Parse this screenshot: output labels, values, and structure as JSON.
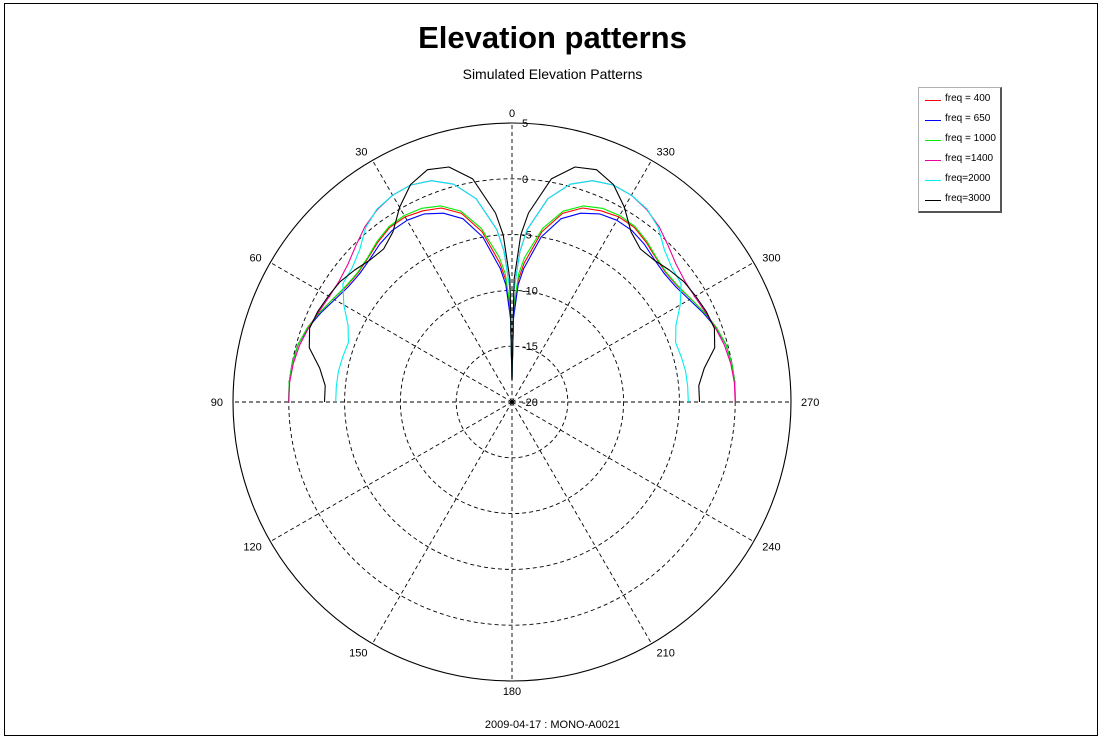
{
  "title": "Elevation patterns",
  "subtitle": "Simulated Elevation Patterns",
  "footer": "2009-04-17 : MONO-A0021",
  "chart_data": {
    "type": "polar-line",
    "title": "Elevation patterns",
    "subtitle": "Simulated Elevation Patterns",
    "angle_unit": "degrees",
    "angle_direction": "counterclockwise",
    "angle_zero": "top",
    "angle_ticks": [
      0,
      30,
      60,
      90,
      120,
      150,
      180,
      210,
      240,
      270,
      300,
      330
    ],
    "angle_tick_labels": [
      "0",
      "30",
      "60",
      "90",
      "120",
      "150",
      "180",
      "210",
      "240",
      "270",
      "300",
      "330"
    ],
    "radial_range": [
      -20,
      5
    ],
    "radial_ticks": [
      -20,
      -15,
      -10,
      -5,
      0,
      5
    ],
    "radial_tick_labels": [
      "-20",
      "-15",
      "-10",
      "-5",
      "0",
      "5"
    ],
    "grid": true,
    "legend_position": "top-right",
    "series": [
      {
        "name": "freq = 400",
        "color": "#ff0000",
        "angles": [
          0,
          1,
          3,
          5,
          10,
          15,
          20,
          25,
          30,
          35,
          40,
          45,
          50,
          55,
          60,
          65,
          70,
          75,
          80,
          85,
          90
        ],
        "values": [
          -18,
          -12,
          -9,
          -7.5,
          -4.5,
          -2.5,
          -1.5,
          -1.1,
          -0.85,
          -0.9,
          -1.3,
          -1.75,
          -2,
          -1.9,
          -1.5,
          -1,
          -0.5,
          -0.15,
          0,
          0.05,
          0
        ]
      },
      {
        "name": "freq = 650",
        "color": "#0000ff",
        "angles": [
          0,
          1,
          3,
          5,
          10,
          15,
          20,
          25,
          30,
          35,
          40,
          45,
          50,
          55,
          60,
          65,
          70,
          75,
          80,
          85,
          90
        ],
        "values": [
          -18,
          -12.5,
          -9.5,
          -8,
          -5,
          -3,
          -2,
          -1.4,
          -1.2,
          -1.25,
          -1.55,
          -1.95,
          -2.15,
          -2.05,
          -1.65,
          -1.1,
          -0.55,
          -0.15,
          0,
          0.05,
          0
        ]
      },
      {
        "name": "freq = 1000",
        "color": "#00ee00",
        "angles": [
          0,
          1,
          3,
          5,
          10,
          15,
          20,
          25,
          30,
          35,
          40,
          45,
          50,
          55,
          60,
          65,
          70,
          75,
          80,
          85,
          90
        ],
        "values": [
          -18,
          -11.5,
          -8.5,
          -7,
          -4.2,
          -2.3,
          -1.3,
          -0.85,
          -0.7,
          -0.8,
          -1.2,
          -1.7,
          -1.95,
          -1.85,
          -1.5,
          -1,
          -0.5,
          -0.15,
          0,
          0.05,
          0
        ]
      },
      {
        "name": "freq =1400",
        "color": "#ee0099",
        "angles": [
          0,
          1,
          3,
          5,
          10,
          15,
          20,
          25,
          30,
          35,
          40,
          45,
          50,
          55,
          60,
          65,
          70,
          75,
          80,
          85,
          90
        ],
        "values": [
          -18,
          -10,
          -6.5,
          -4.5,
          -1.5,
          0.2,
          1.1,
          1.45,
          1.4,
          1.05,
          0.5,
          -0.2,
          -0.8,
          -1.1,
          -1.1,
          -0.9,
          -0.6,
          -0.3,
          -0.1,
          0,
          0
        ]
      },
      {
        "name": "freq=2000",
        "color": "#00eeee",
        "angles": [
          0,
          1,
          3,
          5,
          10,
          15,
          20,
          25,
          30,
          35,
          40,
          45,
          50,
          55,
          60,
          65,
          70,
          75,
          80,
          85,
          90
        ],
        "values": [
          -18,
          -10,
          -6.5,
          -4.5,
          -1.5,
          0.2,
          1.1,
          1.45,
          1.4,
          1.1,
          0.4,
          -0.7,
          -1.3,
          -1.5,
          -2.6,
          -3.8,
          -4.4,
          -4.3,
          -4.2,
          -4.2,
          -4.2
        ]
      },
      {
        "name": "freq=3000",
        "color": "#000000",
        "angles": [
          0,
          1,
          3,
          5,
          10,
          15,
          20,
          25,
          30,
          35,
          40,
          45,
          50,
          55,
          60,
          65,
          70,
          75,
          80,
          85,
          90
        ],
        "values": [
          -18,
          -9,
          -5,
          -3,
          0.3,
          1.8,
          2.15,
          1.5,
          0.15,
          -1.4,
          -2.1,
          -2,
          -1.6,
          -1.2,
          -1,
          -0.8,
          -0.7,
          -1.2,
          -2.5,
          -3.2,
          -3.2
        ]
      }
    ]
  }
}
